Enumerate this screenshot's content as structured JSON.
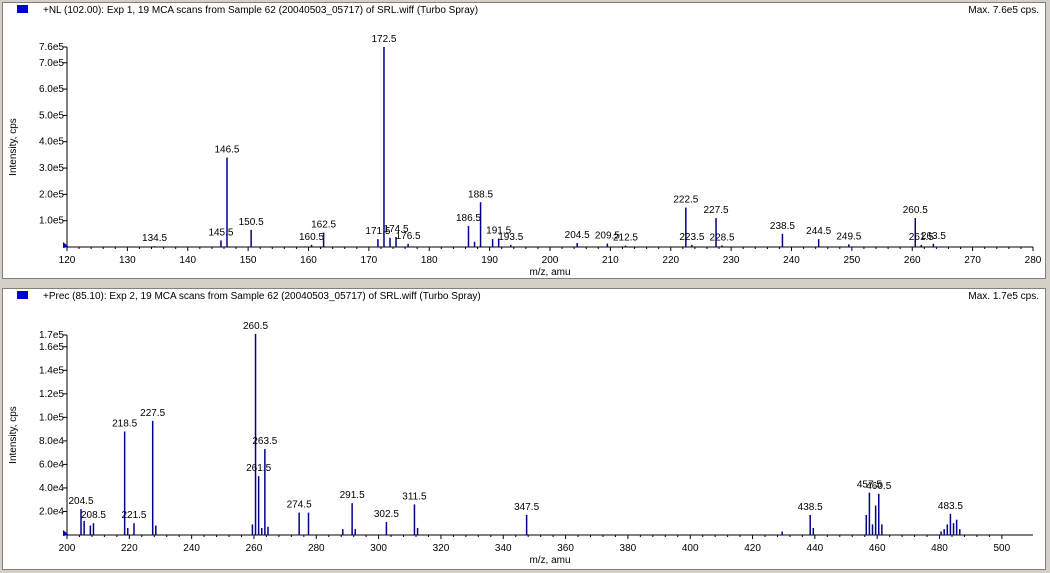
{
  "colors": {
    "trace": "#00008b",
    "marker": "#0000cc",
    "axis": "#000000"
  },
  "panels": [
    {
      "title": "+NL (102.00): Exp 1, 19 MCA scans from Sample 62 (20040503_05717) of SRL.wiff (Turbo Spray)",
      "max_label": "Max. 7.6e5 cps."
    },
    {
      "title": "+Prec (85.10): Exp 2, 19 MCA scans from Sample 62 (20040503_05717) of SRL.wiff (Turbo Spray)",
      "max_label": "Max. 1.7e5 cps."
    }
  ],
  "chart_data": [
    {
      "type": "bar",
      "xlabel": "m/z, amu",
      "ylabel": "Intensity, cps",
      "xlim": [
        120,
        280
      ],
      "ylim": [
        0,
        760000
      ],
      "x_ticks": [
        "120",
        "130",
        "140",
        "150",
        "160",
        "170",
        "180",
        "190",
        "200",
        "210",
        "220",
        "230",
        "240",
        "250",
        "260",
        "270",
        "280"
      ],
      "x_tick_values": [
        120,
        130,
        140,
        150,
        160,
        170,
        180,
        190,
        200,
        210,
        220,
        230,
        240,
        250,
        260,
        270,
        280
      ],
      "y_ticks": [
        "1.0e5",
        "2.0e5",
        "3.0e5",
        "4.0e5",
        "5.0e5",
        "6.0e5",
        "7.0e5",
        "7.6e5"
      ],
      "y_tick_values": [
        100000,
        200000,
        300000,
        400000,
        500000,
        600000,
        700000,
        760000
      ],
      "peaks": [
        {
          "x": 134.5,
          "y": 3000,
          "label": "134.5"
        },
        {
          "x": 145.5,
          "y": 25000,
          "label": "145.5"
        },
        {
          "x": 146.5,
          "y": 340000,
          "label": "146.5"
        },
        {
          "x": 150.5,
          "y": 65000,
          "label": "150.5"
        },
        {
          "x": 160.5,
          "y": 8000,
          "label": "160.5"
        },
        {
          "x": 162.5,
          "y": 55000,
          "label": "162.5"
        },
        {
          "x": 171.5,
          "y": 30000,
          "label": "171.5"
        },
        {
          "x": 172.5,
          "y": 760000,
          "label": "172.5"
        },
        {
          "x": 173.5,
          "y": 35000,
          "label": ""
        },
        {
          "x": 174.5,
          "y": 38000,
          "label": "174.5"
        },
        {
          "x": 176.5,
          "y": 12000,
          "label": "176.5"
        },
        {
          "x": 186.5,
          "y": 80000,
          "label": "186.5"
        },
        {
          "x": 187.5,
          "y": 20000,
          "label": ""
        },
        {
          "x": 188.5,
          "y": 170000,
          "label": "188.5"
        },
        {
          "x": 190.5,
          "y": 30000,
          "label": ""
        },
        {
          "x": 191.5,
          "y": 32000,
          "label": "191.5"
        },
        {
          "x": 193.5,
          "y": 8000,
          "label": "193.5"
        },
        {
          "x": 204.5,
          "y": 15000,
          "label": "204.5"
        },
        {
          "x": 209.5,
          "y": 13000,
          "label": "209.5"
        },
        {
          "x": 212.5,
          "y": 5000,
          "label": "212.5"
        },
        {
          "x": 222.5,
          "y": 150000,
          "label": "222.5"
        },
        {
          "x": 223.5,
          "y": 8000,
          "label": "223.5"
        },
        {
          "x": 227.5,
          "y": 110000,
          "label": "227.5"
        },
        {
          "x": 228.5,
          "y": 6000,
          "label": "228.5"
        },
        {
          "x": 238.5,
          "y": 50000,
          "label": "238.5"
        },
        {
          "x": 244.5,
          "y": 30000,
          "label": "244.5"
        },
        {
          "x": 249.5,
          "y": 10000,
          "label": "249.5"
        },
        {
          "x": 260.5,
          "y": 110000,
          "label": "260.5"
        },
        {
          "x": 261.5,
          "y": 8000,
          "label": "261.5"
        },
        {
          "x": 263.5,
          "y": 12000,
          "label": "263.5"
        }
      ]
    },
    {
      "type": "bar",
      "xlabel": "m/z, amu",
      "ylabel": "Intensity, cps",
      "xlim": [
        200,
        510
      ],
      "ylim": [
        0,
        170000
      ],
      "x_ticks": [
        "200",
        "220",
        "240",
        "260",
        "280",
        "300",
        "320",
        "340",
        "360",
        "380",
        "400",
        "420",
        "440",
        "460",
        "480",
        "500"
      ],
      "x_tick_values": [
        200,
        220,
        240,
        260,
        280,
        300,
        320,
        340,
        360,
        380,
        400,
        420,
        440,
        460,
        480,
        500
      ],
      "y_ticks": [
        "2.0e4",
        "4.0e4",
        "6.0e4",
        "8.0e4",
        "1.0e5",
        "1.2e5",
        "1.4e5",
        "1.6e5",
        "1.7e5"
      ],
      "y_tick_values": [
        20000,
        40000,
        60000,
        80000,
        100000,
        120000,
        140000,
        160000,
        170000
      ],
      "peaks": [
        {
          "x": 204.5,
          "y": 22000,
          "label": "204.5"
        },
        {
          "x": 205.5,
          "y": 12000,
          "label": ""
        },
        {
          "x": 207.5,
          "y": 8000,
          "label": ""
        },
        {
          "x": 208.5,
          "y": 10000,
          "label": "208.5"
        },
        {
          "x": 218.5,
          "y": 88000,
          "label": "218.5"
        },
        {
          "x": 219.5,
          "y": 6000,
          "label": ""
        },
        {
          "x": 221.5,
          "y": 10000,
          "label": "221.5"
        },
        {
          "x": 227.5,
          "y": 97000,
          "label": "227.5"
        },
        {
          "x": 228.5,
          "y": 8000,
          "label": ""
        },
        {
          "x": 259.5,
          "y": 9000,
          "label": ""
        },
        {
          "x": 260.5,
          "y": 171000,
          "label": "260.5"
        },
        {
          "x": 261.5,
          "y": 50000,
          "label": "261.5"
        },
        {
          "x": 262.5,
          "y": 6000,
          "label": ""
        },
        {
          "x": 263.5,
          "y": 73000,
          "label": "263.5"
        },
        {
          "x": 264.5,
          "y": 7000,
          "label": ""
        },
        {
          "x": 274.5,
          "y": 19000,
          "label": "274.5"
        },
        {
          "x": 277.5,
          "y": 19000,
          "label": ""
        },
        {
          "x": 288.5,
          "y": 5000,
          "label": ""
        },
        {
          "x": 291.5,
          "y": 27000,
          "label": "291.5"
        },
        {
          "x": 292.5,
          "y": 5000,
          "label": ""
        },
        {
          "x": 302.5,
          "y": 11000,
          "label": "302.5"
        },
        {
          "x": 311.5,
          "y": 26000,
          "label": "311.5"
        },
        {
          "x": 312.5,
          "y": 6000,
          "label": ""
        },
        {
          "x": 347.5,
          "y": 17000,
          "label": "347.5"
        },
        {
          "x": 429.5,
          "y": 3000,
          "label": ""
        },
        {
          "x": 438.5,
          "y": 17000,
          "label": "438.5"
        },
        {
          "x": 439.5,
          "y": 6000,
          "label": ""
        },
        {
          "x": 456.5,
          "y": 17000,
          "label": ""
        },
        {
          "x": 457.5,
          "y": 36000,
          "label": "457.5"
        },
        {
          "x": 458.5,
          "y": 9000,
          "label": ""
        },
        {
          "x": 459.5,
          "y": 25000,
          "label": ""
        },
        {
          "x": 460.5,
          "y": 35000,
          "label": "460.5"
        },
        {
          "x": 461.5,
          "y": 9000,
          "label": ""
        },
        {
          "x": 480.5,
          "y": 3000,
          "label": ""
        },
        {
          "x": 481.5,
          "y": 5000,
          "label": ""
        },
        {
          "x": 482.5,
          "y": 9000,
          "label": ""
        },
        {
          "x": 483.5,
          "y": 18000,
          "label": "483.5"
        },
        {
          "x": 484.5,
          "y": 10000,
          "label": ""
        },
        {
          "x": 485.5,
          "y": 13000,
          "label": ""
        },
        {
          "x": 486.5,
          "y": 5000,
          "label": ""
        }
      ]
    }
  ]
}
